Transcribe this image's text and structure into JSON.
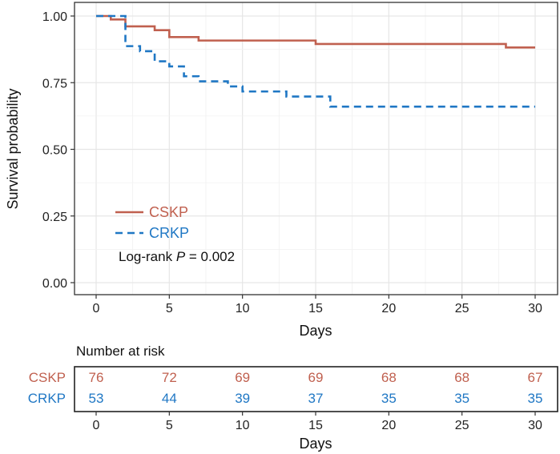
{
  "chart_data": {
    "type": "line",
    "subtype": "kaplan-meier-survival",
    "xlabel": "Days",
    "ylabel": "Survival probability",
    "xlim": [
      0,
      30
    ],
    "ylim": [
      0,
      1
    ],
    "x_ticks": [
      "0",
      "5",
      "10",
      "15",
      "20",
      "25",
      "30"
    ],
    "y_ticks": [
      "0.00",
      "0.25",
      "0.50",
      "0.75",
      "1.00"
    ],
    "x_tick_values": [
      0,
      5,
      10,
      15,
      20,
      25,
      30
    ],
    "y_tick_values": [
      0,
      0.25,
      0.5,
      0.75,
      1.0
    ],
    "grid": true,
    "legend_position": "bottom-left",
    "series": [
      {
        "name": "CSKP",
        "color": "#c0604f",
        "style": "solid",
        "steps": [
          [
            0,
            1.0
          ],
          [
            1,
            0.987
          ],
          [
            2,
            0.961
          ],
          [
            4,
            0.947
          ],
          [
            5,
            0.921
          ],
          [
            7,
            0.908
          ],
          [
            15,
            0.895
          ],
          [
            28,
            0.882
          ],
          [
            30,
            0.882
          ]
        ]
      },
      {
        "name": "CRKP",
        "color": "#1f77c4",
        "style": "dashed",
        "steps": [
          [
            0,
            1.0
          ],
          [
            2,
            0.887
          ],
          [
            3,
            0.868
          ],
          [
            4,
            0.83
          ],
          [
            5,
            0.811
          ],
          [
            6,
            0.774
          ],
          [
            7,
            0.755
          ],
          [
            9,
            0.736
          ],
          [
            10,
            0.717
          ],
          [
            13,
            0.698
          ],
          [
            16,
            0.66
          ],
          [
            30,
            0.66
          ]
        ]
      }
    ],
    "annotation": {
      "prefix": "Log-rank ",
      "variable": "P",
      "suffix": " = 0.002"
    },
    "risk_table": {
      "title": "Number at risk",
      "xlabel": "Days",
      "times": [
        0,
        5,
        10,
        15,
        20,
        25,
        30
      ],
      "time_labels": [
        "0",
        "5",
        "10",
        "15",
        "20",
        "25",
        "30"
      ],
      "rows": [
        {
          "label": "CSKP",
          "color": "#c0604f",
          "values": [
            "76",
            "72",
            "69",
            "69",
            "68",
            "68",
            "67"
          ]
        },
        {
          "label": "CRKP",
          "color": "#1f77c4",
          "values": [
            "53",
            "44",
            "39",
            "37",
            "35",
            "35",
            "35"
          ]
        }
      ]
    }
  }
}
